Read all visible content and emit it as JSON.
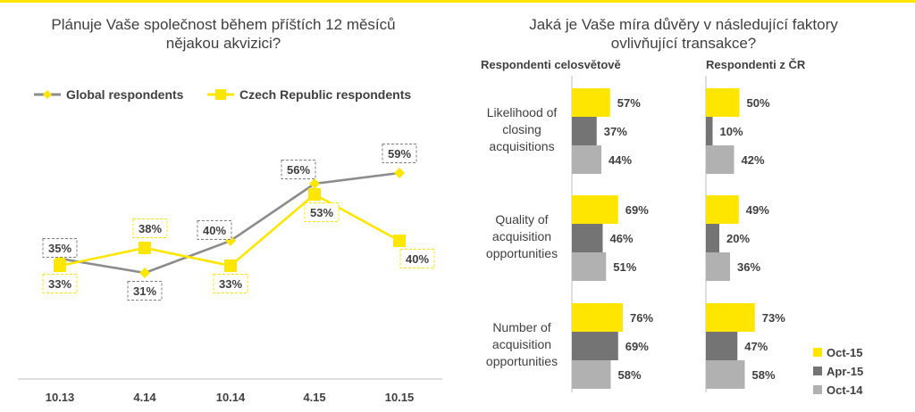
{
  "left_title_lines": [
    "Plánuje Vaše společnost během příštích 12 měsíců",
    "nějakou akvizici?"
  ],
  "right_title_lines": [
    "Jaká je Vaše míra důvěry v následující faktory",
    "ovlivňující transakce?"
  ],
  "colors": {
    "yellow": "#ffe600",
    "dark_gray": "#747474",
    "light_gray": "#b1b1b1",
    "text": "#404040",
    "axis": "#bfbfbf"
  },
  "chart_data": [
    {
      "type": "line",
      "categories": [
        "10.13",
        "4.14",
        "10.14",
        "4.15",
        "10.15"
      ],
      "legend_position": "top",
      "series": [
        {
          "name": "Global respondents",
          "values": [
            35,
            31,
            40,
            56,
            59
          ],
          "labels": [
            "35%",
            "31%",
            "40%",
            "56%",
            "59%"
          ],
          "color": "#8c8c8c",
          "marker": "diamond"
        },
        {
          "name": "Czech Republic respondents",
          "values": [
            33,
            38,
            33,
            53,
            40
          ],
          "labels": [
            "33%",
            "38%",
            "33%",
            "53%",
            "40%"
          ],
          "color": "#ffe600",
          "marker": "square"
        }
      ],
      "ylim": [
        25,
        65
      ]
    },
    {
      "type": "bar",
      "orientation": "horizontal",
      "panel_title": "Respondenti celosvětově",
      "categories": [
        "Likelihood of closing acquisitions",
        "Quality of acquisition opportunities",
        "Number of acquisition opportunities"
      ],
      "series": [
        {
          "name": "Oct-15",
          "values": [
            57,
            69,
            76
          ],
          "labels": [
            "57%",
            "69%",
            "76%"
          ],
          "color": "#ffe600"
        },
        {
          "name": "Apr-15",
          "values": [
            37,
            46,
            69
          ],
          "labels": [
            "37%",
            "46%",
            "69%"
          ],
          "color": "#747474"
        },
        {
          "name": "Oct-14",
          "values": [
            44,
            51,
            58
          ],
          "labels": [
            "44%",
            "51%",
            "58%"
          ],
          "color": "#b1b1b1"
        }
      ],
      "xlim": [
        0,
        100
      ]
    },
    {
      "type": "bar",
      "orientation": "horizontal",
      "panel_title": "Respondenti z ČR",
      "categories": [
        "Likelihood of closing acquisitions",
        "Quality of acquisition opportunities",
        "Number of acquisition opportunities"
      ],
      "series": [
        {
          "name": "Oct-15",
          "values": [
            50,
            49,
            73
          ],
          "labels": [
            "50%",
            "49%",
            "73%"
          ],
          "color": "#ffe600"
        },
        {
          "name": "Apr-15",
          "values": [
            10,
            20,
            47
          ],
          "labels": [
            "10%",
            "20%",
            "47%"
          ],
          "color": "#747474"
        },
        {
          "name": "Oct-14",
          "values": [
            42,
            36,
            58
          ],
          "labels": [
            "42%",
            "36%",
            "58%"
          ],
          "color": "#b1b1b1"
        }
      ],
      "xlim": [
        0,
        100
      ]
    }
  ],
  "bar_category_lines": [
    [
      "Likelihood of",
      "closing",
      "acquisitions"
    ],
    [
      "Quality of",
      "acquisition",
      "opportunities"
    ],
    [
      "Number of",
      "acquisition",
      "opportunities"
    ]
  ],
  "bar_legend_position": "bottom-right"
}
